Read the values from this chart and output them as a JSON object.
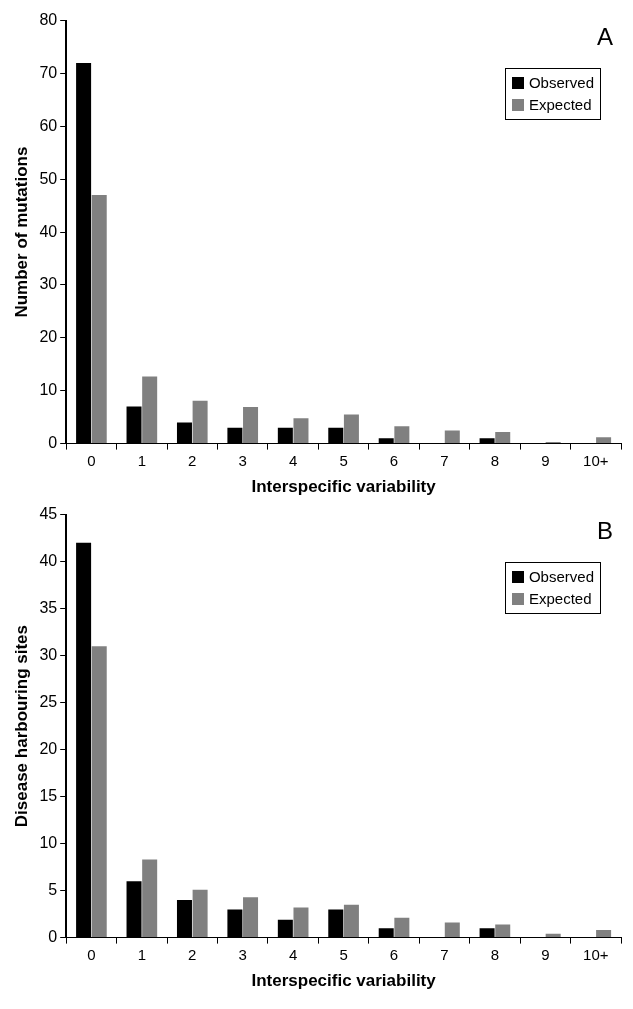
{
  "chart_data": [
    {
      "type": "bar",
      "xlabel": "Interspecific variability",
      "ylabel": "Number of mutations",
      "annotations": [
        "A"
      ],
      "categories": [
        "0",
        "1",
        "2",
        "3",
        "4",
        "5",
        "6",
        "7",
        "8",
        "9",
        "10+"
      ],
      "series": [
        {
          "name": "Observed",
          "color": "#000000",
          "values": [
            72,
            7,
            4,
            3,
            3,
            3,
            1,
            0,
            1,
            0,
            0
          ]
        },
        {
          "name": "Expected",
          "color": "#808080",
          "values": [
            47,
            12.7,
            8.1,
            6.9,
            4.8,
            5.5,
            3.3,
            2.5,
            2.2,
            0.3,
            1.2
          ]
        }
      ],
      "ylim": [
        0,
        80
      ],
      "yticks": [
        0,
        10,
        20,
        30,
        40,
        50,
        60,
        70,
        80
      ],
      "grid": false,
      "legend": "top right"
    },
    {
      "type": "bar",
      "xlabel": "Interspecific variability",
      "ylabel": "Disease harbouring sites",
      "annotations": [
        "B"
      ],
      "categories": [
        "0",
        "1",
        "2",
        "3",
        "4",
        "5",
        "6",
        "7",
        "8",
        "9",
        "10+"
      ],
      "series": [
        {
          "name": "Observed",
          "color": "#000000",
          "values": [
            42,
            6,
            4,
            3,
            1.9,
            3,
            1,
            0,
            1,
            0,
            0
          ]
        },
        {
          "name": "Expected",
          "color": "#808080",
          "values": [
            31,
            8.3,
            5.1,
            4.3,
            3.2,
            3.5,
            2.1,
            1.6,
            1.4,
            0.4,
            0.8
          ]
        }
      ],
      "ylim": [
        0,
        45
      ],
      "yticks": [
        0,
        5,
        10,
        15,
        20,
        25,
        30,
        35,
        40,
        45
      ],
      "grid": false,
      "legend": "top right"
    }
  ]
}
